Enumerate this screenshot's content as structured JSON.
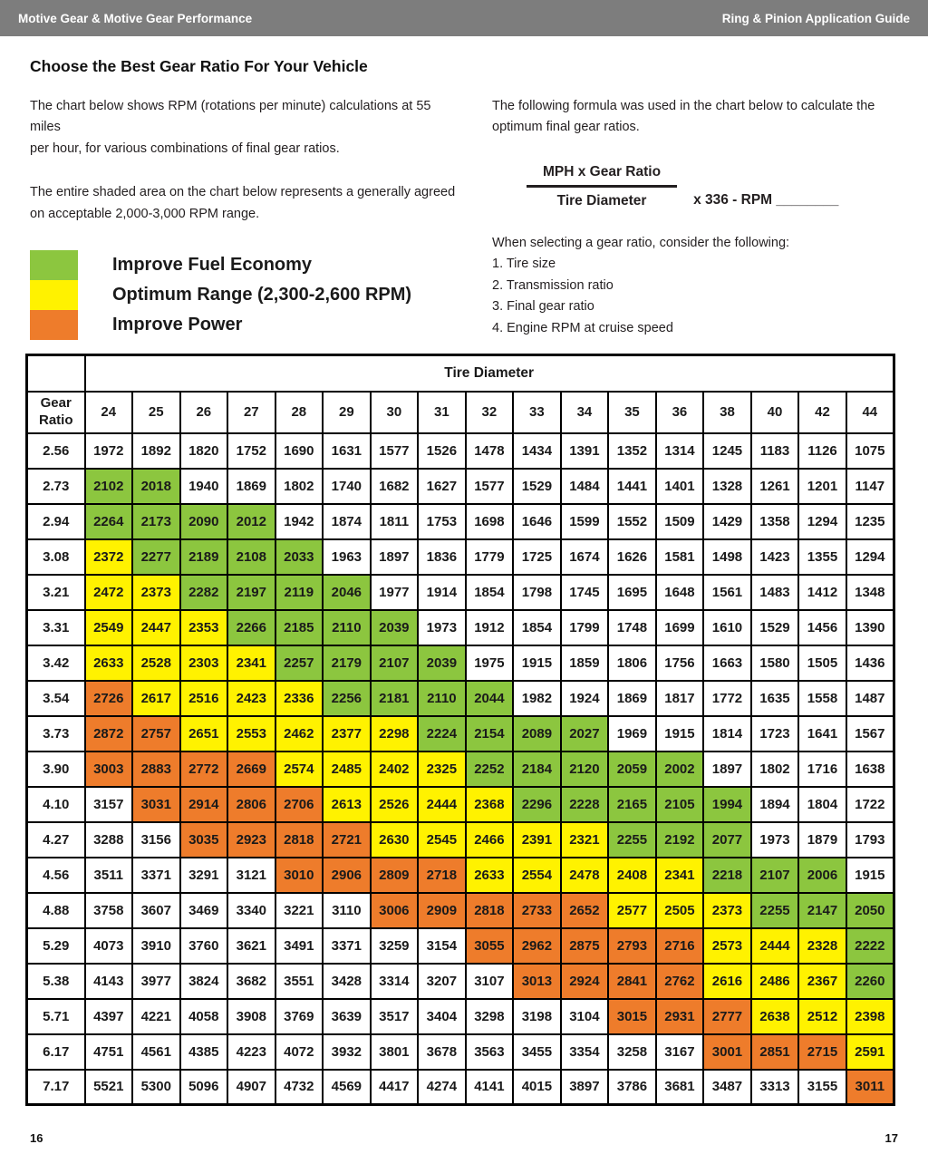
{
  "header": {
    "left": "Motive Gear & Motive Gear Performance",
    "right": "Ring & Pinion Application Guide"
  },
  "title": "Choose the Best Gear Ratio For Your Vehicle",
  "intro": {
    "p1": "The chart below shows RPM (rotations per minute) calculations at 55 miles\nper hour, for various combinations of final gear ratios.",
    "p2": "The entire shaded area on the chart below represents a generally agreed\non acceptable 2,000-3,000 RPM range."
  },
  "legend": {
    "items": [
      {
        "label": "Improve Fuel Economy",
        "color": "#8cc63f"
      },
      {
        "label": "Optimum Range (2,300-2,600 RPM)",
        "color": "#fff200"
      },
      {
        "label": "Improve Power",
        "color": "#ee7c2b"
      }
    ]
  },
  "formula": {
    "intro": "The following formula was used in the chart below to calculate the\noptimum final gear ratios.",
    "numerator": "MPH x Gear Ratio",
    "denominator": "Tire Diameter",
    "suffix": "x 336 - RPM ________"
  },
  "considerations": {
    "heading": "When selecting a gear ratio, consider the following:",
    "items": [
      "1. Tire size",
      "2. Transmission ratio",
      "3. Final gear ratio",
      "4. Engine RPM at cruise speed"
    ]
  },
  "colors": {
    "header_bar": "#7d7d7d",
    "green": "#8cc63f",
    "yellow": "#fff200",
    "orange": "#ee7c2b"
  },
  "table": {
    "group_header": "Tire Diameter",
    "corner_label": "Gear\nRatio",
    "columns": [
      "24",
      "25",
      "26",
      "27",
      "28",
      "29",
      "30",
      "31",
      "32",
      "33",
      "34",
      "35",
      "36",
      "38",
      "40",
      "42",
      "44"
    ],
    "color_map": {
      "w": "c-w",
      "g": "c-g",
      "y": "c-y",
      "o": "c-o"
    },
    "rows": [
      {
        "ratio": "2.56",
        "values": [
          1972,
          1892,
          1820,
          1752,
          1690,
          1631,
          1577,
          1526,
          1478,
          1434,
          1391,
          1352,
          1314,
          1245,
          1183,
          1126,
          1075
        ],
        "colors": "wwwwwwwwwwwwwwwww"
      },
      {
        "ratio": "2.73",
        "values": [
          2102,
          2018,
          1940,
          1869,
          1802,
          1740,
          1682,
          1627,
          1577,
          1529,
          1484,
          1441,
          1401,
          1328,
          1261,
          1201,
          1147
        ],
        "colors": "ggwwwwwwwwwwwwwww"
      },
      {
        "ratio": "2.94",
        "values": [
          2264,
          2173,
          2090,
          2012,
          1942,
          1874,
          1811,
          1753,
          1698,
          1646,
          1599,
          1552,
          1509,
          1429,
          1358,
          1294,
          1235
        ],
        "colors": "ggggwwwwwwwwwwwww"
      },
      {
        "ratio": "3.08",
        "values": [
          2372,
          2277,
          2189,
          2108,
          2033,
          1963,
          1897,
          1836,
          1779,
          1725,
          1674,
          1626,
          1581,
          1498,
          1423,
          1355,
          1294
        ],
        "colors": "yggggwwwwwwwwwwww"
      },
      {
        "ratio": "3.21",
        "values": [
          2472,
          2373,
          2282,
          2197,
          2119,
          2046,
          1977,
          1914,
          1854,
          1798,
          1745,
          1695,
          1648,
          1561,
          1483,
          1412,
          1348
        ],
        "colors": "yyggggwwwwwwwwwww"
      },
      {
        "ratio": "3.31",
        "values": [
          2549,
          2447,
          2353,
          2266,
          2185,
          2110,
          2039,
          1973,
          1912,
          1854,
          1799,
          1748,
          1699,
          1610,
          1529,
          1456,
          1390
        ],
        "colors": "yyyggggwwwwwwwwww"
      },
      {
        "ratio": "3.42",
        "values": [
          2633,
          2528,
          2303,
          2341,
          2257,
          2179,
          2107,
          2039,
          1975,
          1915,
          1859,
          1806,
          1756,
          1663,
          1580,
          1505,
          1436
        ],
        "colors": "yyyyggggwwwwwwwww"
      },
      {
        "ratio": "3.54",
        "values": [
          2726,
          2617,
          2516,
          2423,
          2336,
          2256,
          2181,
          2110,
          2044,
          1982,
          1924,
          1869,
          1817,
          1772,
          1635,
          1558,
          1487
        ],
        "colors": "oyyyyggggwwwwwwww"
      },
      {
        "ratio": "3.73",
        "values": [
          2872,
          2757,
          2651,
          2553,
          2462,
          2377,
          2298,
          2224,
          2154,
          2089,
          2027,
          1969,
          1915,
          1814,
          1723,
          1641,
          1567
        ],
        "colors": "ooyyyyyggggwwwwww"
      },
      {
        "ratio": "3.90",
        "values": [
          3003,
          2883,
          2772,
          2669,
          2574,
          2485,
          2402,
          2325,
          2252,
          2184,
          2120,
          2059,
          2002,
          1897,
          1802,
          1716,
          1638
        ],
        "colors": "ooooyyyygggggwwww"
      },
      {
        "ratio": "4.10",
        "values": [
          3157,
          3031,
          2914,
          2806,
          2706,
          2613,
          2526,
          2444,
          2368,
          2296,
          2228,
          2165,
          2105,
          1994,
          1894,
          1804,
          1722
        ],
        "colors": "wooooyyyygggggwww"
      },
      {
        "ratio": "4.27",
        "values": [
          3288,
          3156,
          3035,
          2923,
          2818,
          2721,
          2630,
          2545,
          2466,
          2391,
          2321,
          2255,
          2192,
          2077,
          1973,
          1879,
          1793
        ],
        "colors": "wwooooyyyyygggwww"
      },
      {
        "ratio": "4.56",
        "values": [
          3511,
          3371,
          3291,
          3121,
          3010,
          2906,
          2809,
          2718,
          2633,
          2554,
          2478,
          2408,
          2341,
          2218,
          2107,
          2006,
          1915
        ],
        "colors": "wwwwooooyyyyygggw"
      },
      {
        "ratio": "4.88",
        "values": [
          3758,
          3607,
          3469,
          3340,
          3221,
          3110,
          3006,
          2909,
          2818,
          2733,
          2652,
          2577,
          2505,
          2373,
          2255,
          2147,
          2050
        ],
        "colors": "wwwwwwoooooyyyggg"
      },
      {
        "ratio": "5.29",
        "values": [
          4073,
          3910,
          3760,
          3621,
          3491,
          3371,
          3259,
          3154,
          3055,
          2962,
          2875,
          2793,
          2716,
          2573,
          2444,
          2328,
          2222
        ],
        "colors": "wwwwwwwwoooooyyyg"
      },
      {
        "ratio": "5.38",
        "values": [
          4143,
          3977,
          3824,
          3682,
          3551,
          3428,
          3314,
          3207,
          3107,
          3013,
          2924,
          2841,
          2762,
          2616,
          2486,
          2367,
          2260
        ],
        "colors": "wwwwwwwwwooooyyyg"
      },
      {
        "ratio": "5.71",
        "values": [
          4397,
          4221,
          4058,
          3908,
          3769,
          3639,
          3517,
          3404,
          3298,
          3198,
          3104,
          3015,
          2931,
          2777,
          2638,
          2512,
          2398
        ],
        "colors": "wwwwwwwwwwwoooyyy"
      },
      {
        "ratio": "6.17",
        "values": [
          4751,
          4561,
          4385,
          4223,
          4072,
          3932,
          3801,
          3678,
          3563,
          3455,
          3354,
          3258,
          3167,
          3001,
          2851,
          2715,
          2591
        ],
        "colors": "wwwwwwwwwwwwwoooy"
      },
      {
        "ratio": "7.17",
        "values": [
          5521,
          5300,
          5096,
          4907,
          4732,
          4569,
          4417,
          4274,
          4141,
          4015,
          3897,
          3786,
          3681,
          3487,
          3313,
          3155,
          3011
        ],
        "colors": "wwwwwwwwwwwwwwwwo"
      }
    ]
  },
  "footer": {
    "left_page": "16",
    "right_page": "17"
  }
}
